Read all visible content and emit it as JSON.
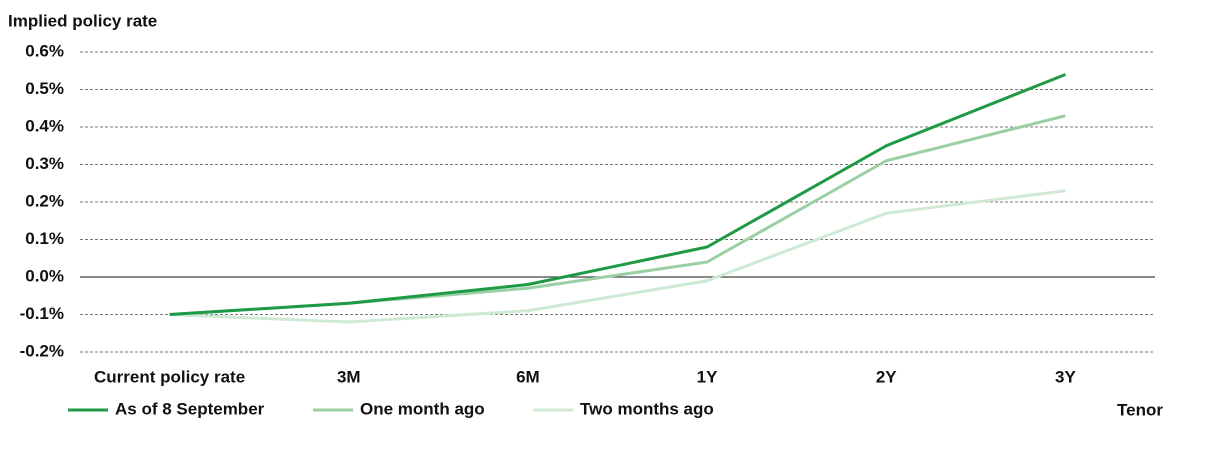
{
  "chart_data": {
    "type": "line",
    "y_label": "Implied policy rate",
    "x_label": "Tenor",
    "categories": [
      "Current policy rate",
      "3M",
      "6M",
      "1Y",
      "2Y",
      "3Y"
    ],
    "series": [
      {
        "name": "As of 8 September",
        "color": "#1e9a45",
        "values": [
          -0.1,
          -0.07,
          -0.02,
          0.08,
          0.35,
          0.54
        ]
      },
      {
        "name": "One month ago",
        "color": "#9bd0a6",
        "values": [
          -0.1,
          -0.07,
          -0.03,
          0.04,
          0.31,
          0.43
        ]
      },
      {
        "name": "Two months ago",
        "color": "#cfe9d5",
        "values": [
          -0.1,
          -0.12,
          -0.09,
          -0.01,
          0.17,
          0.23
        ]
      }
    ],
    "ylim": [
      -0.2,
      0.6
    ],
    "yticks": [
      {
        "value": -0.2,
        "label": "-0.2%"
      },
      {
        "value": -0.1,
        "label": "-0.1%"
      },
      {
        "value": 0,
        "label": "0.0%"
      },
      {
        "value": 0.1,
        "label": "0.1%"
      },
      {
        "value": 0.2,
        "label": "0.2%"
      },
      {
        "value": 0.3,
        "label": "0.3%"
      },
      {
        "value": 0.4,
        "label": "0.4%"
      },
      {
        "value": 0.5,
        "label": "0.5%"
      },
      {
        "value": 0.6,
        "label": "0.6%"
      }
    ],
    "grid": true
  }
}
